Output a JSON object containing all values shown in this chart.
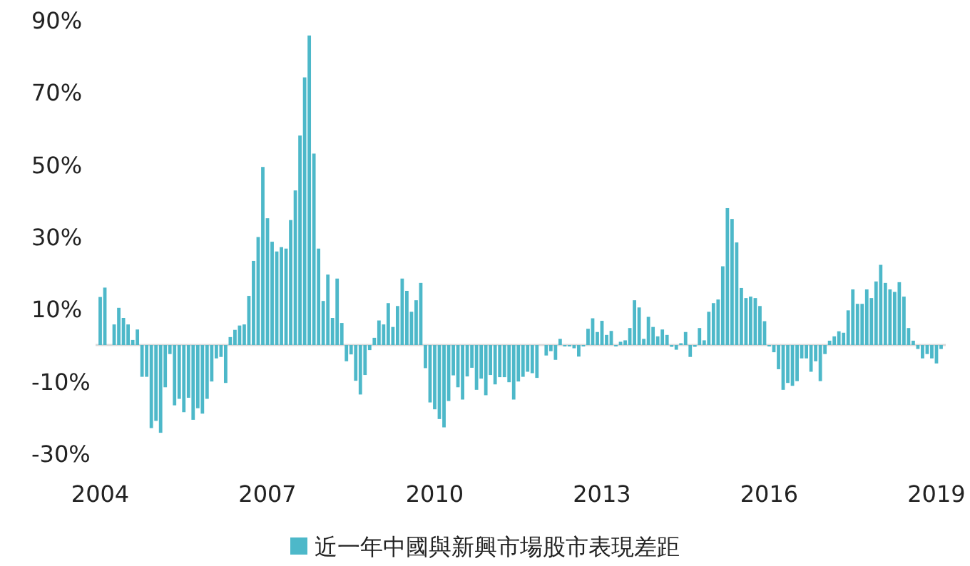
{
  "chart_data": {
    "type": "bar",
    "legend": "bottom",
    "xlim": [
      "2003-12",
      "2019-03"
    ],
    "xticks": [
      "2004",
      "2007",
      "2010",
      "2013",
      "2016",
      "2019"
    ],
    "ylim": [
      -30,
      90
    ],
    "yticks": [
      {
        "value": 90,
        "label": "90%"
      },
      {
        "value": 70,
        "label": "70%"
      },
      {
        "value": 50,
        "label": "50%"
      },
      {
        "value": 30,
        "label": "30%"
      },
      {
        "value": 10,
        "label": "10%"
      },
      {
        "value": -10,
        "label": "-10%"
      },
      {
        "value": -30,
        "label": "-30%"
      }
    ],
    "x": [
      "2004-01",
      "2004-02",
      "2004-03",
      "2004-04",
      "2004-05",
      "2004-06",
      "2004-07",
      "2004-08",
      "2004-09",
      "2004-10",
      "2004-11",
      "2004-12",
      "2005-01",
      "2005-02",
      "2005-03",
      "2005-04",
      "2005-05",
      "2005-06",
      "2005-07",
      "2005-08",
      "2005-09",
      "2005-10",
      "2005-11",
      "2005-12",
      "2006-01",
      "2006-02",
      "2006-03",
      "2006-04",
      "2006-05",
      "2006-06",
      "2006-07",
      "2006-08",
      "2006-09",
      "2006-10",
      "2006-11",
      "2006-12",
      "2007-01",
      "2007-02",
      "2007-03",
      "2007-04",
      "2007-05",
      "2007-06",
      "2007-07",
      "2007-08",
      "2007-09",
      "2007-10",
      "2007-11",
      "2007-12",
      "2008-01",
      "2008-02",
      "2008-03",
      "2008-04",
      "2008-05",
      "2008-06",
      "2008-07",
      "2008-08",
      "2008-09",
      "2008-10",
      "2008-11",
      "2008-12",
      "2009-01",
      "2009-02",
      "2009-03",
      "2009-04",
      "2009-05",
      "2009-06",
      "2009-07",
      "2009-08",
      "2009-09",
      "2009-10",
      "2009-11",
      "2009-12",
      "2010-01",
      "2010-02",
      "2010-03",
      "2010-04",
      "2010-05",
      "2010-06",
      "2010-07",
      "2010-08",
      "2010-09",
      "2010-10",
      "2010-11",
      "2010-12",
      "2011-01",
      "2011-02",
      "2011-03",
      "2011-04",
      "2011-05",
      "2011-06",
      "2011-07",
      "2011-08",
      "2011-09",
      "2011-10",
      "2011-11",
      "2011-12",
      "2012-01",
      "2012-02",
      "2012-03",
      "2012-04",
      "2012-05",
      "2012-06",
      "2012-07",
      "2012-08",
      "2012-09",
      "2012-10",
      "2012-11",
      "2012-12",
      "2013-01",
      "2013-02",
      "2013-03",
      "2013-04",
      "2013-05",
      "2013-06",
      "2013-07",
      "2013-08",
      "2013-09",
      "2013-10",
      "2013-11",
      "2013-12",
      "2014-01",
      "2014-02",
      "2014-03",
      "2014-04",
      "2014-05",
      "2014-06",
      "2014-07",
      "2014-08",
      "2014-09",
      "2014-10",
      "2014-11",
      "2014-12",
      "2015-01",
      "2015-02",
      "2015-03",
      "2015-04",
      "2015-05",
      "2015-06",
      "2015-07",
      "2015-08",
      "2015-09",
      "2015-10",
      "2015-11",
      "2015-12",
      "2016-01",
      "2016-02",
      "2016-03",
      "2016-04",
      "2016-05",
      "2016-06",
      "2016-07",
      "2016-08",
      "2016-09",
      "2016-10",
      "2016-11",
      "2016-12",
      "2017-01",
      "2017-02",
      "2017-03",
      "2017-04",
      "2017-05",
      "2017-06",
      "2017-07",
      "2017-08",
      "2017-09",
      "2017-10",
      "2017-11",
      "2017-12",
      "2018-01",
      "2018-02",
      "2018-03",
      "2018-04",
      "2018-05",
      "2018-06",
      "2018-07",
      "2018-08",
      "2018-09",
      "2018-10",
      "2018-11",
      "2018-12",
      "2019-01",
      "2019-02"
    ],
    "series": [
      {
        "name": "近一年中國與新興市場股市表現差距",
        "color": "#4db8c9",
        "values": [
          13.3,
          15.9,
          0,
          5.7,
          10.3,
          7.5,
          5.7,
          1.4,
          4.3,
          -8.8,
          -8.8,
          -23,
          -21,
          -24.3,
          -11.7,
          -2.5,
          -16.7,
          -14.9,
          -18.6,
          -14.6,
          -20.7,
          -17.5,
          -19,
          -14.9,
          -10.1,
          -3.7,
          -3.3,
          -10.5,
          2.2,
          4.2,
          5.4,
          5.7,
          13.6,
          23.3,
          29.9,
          49.3,
          35.1,
          28.6,
          25.9,
          27.1,
          26.7,
          34.6,
          42.8,
          58,
          74.1,
          85.7,
          53,
          26.7,
          12.2,
          19.5,
          7.5,
          18.4,
          6.1,
          -4.5,
          -2.6,
          -9.9,
          -13.7,
          -8.3,
          -1.4,
          2,
          6.8,
          5.7,
          11.6,
          5,
          10.8,
          18.4,
          15,
          9.2,
          12.4,
          17.2,
          -6.4,
          -15.9,
          -17.8,
          -20.5,
          -22.8,
          -15.5,
          -8.4,
          -11.7,
          -15.1,
          -8.7,
          -6.3,
          -12.4,
          -9.3,
          -13.9,
          -8.3,
          -10.9,
          -8.9,
          -8.9,
          -10.3,
          -15.1,
          -10.1,
          -8.8,
          -7.4,
          -7.8,
          -9.1,
          0,
          -2.9,
          -1.7,
          -4.1,
          1.7,
          -0.4,
          -0.4,
          -0.9,
          -3.2,
          -0.4,
          4.5,
          7.4,
          3.6,
          6.7,
          2.8,
          3.9,
          -0.4,
          0.9,
          1.3,
          4.7,
          12.4,
          10.4,
          1.7,
          7.8,
          5,
          2.4,
          4.3,
          2.8,
          -0.5,
          -1.3,
          0.5,
          3.6,
          -3.3,
          -0.5,
          4.7,
          1.3,
          9.2,
          11.6,
          12.6,
          21.8,
          37.9,
          34.9,
          28.4,
          15.8,
          13,
          13.4,
          13,
          10.8,
          6.6,
          -0.4,
          -2,
          -6.7,
          -12.4,
          -10.5,
          -11.3,
          -10,
          -3.7,
          -3.7,
          -7.4,
          -4.5,
          -10,
          -2.5,
          1.2,
          2.4,
          3.8,
          3.4,
          9.6,
          15.4,
          11.4,
          11.4,
          15.4,
          13,
          17.6,
          22.2,
          17.2,
          15.4,
          14.7,
          17.4,
          13.4,
          4.7,
          1.2,
          -1.1,
          -3.7,
          -2.5,
          -3.7,
          -5.1,
          -1.1
        ]
      }
    ]
  }
}
